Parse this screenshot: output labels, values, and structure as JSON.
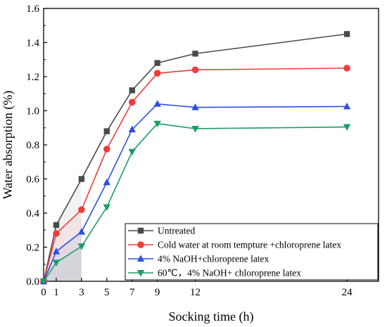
{
  "chart_data": {
    "type": "line",
    "xlabel": "Socking time (h)",
    "ylabel": "Water absorption (%)",
    "xlim": [
      0,
      26.5
    ],
    "ylim": [
      0,
      1.6
    ],
    "x_ticks": [
      0,
      1,
      3,
      5,
      7,
      9,
      12,
      24
    ],
    "y_ticks": [
      0.0,
      0.2,
      0.4,
      0.6,
      0.8,
      1.0,
      1.2,
      1.4,
      1.6
    ],
    "y_tick_labels": [
      "0.0",
      "0.2",
      "0.4",
      "0.6",
      "0.8",
      "1.0",
      "1.2",
      "1.4",
      "1.6"
    ],
    "grid": false,
    "legend_position": "bottom-right",
    "x": [
      0,
      1,
      3,
      5,
      7,
      9,
      12,
      24
    ],
    "series": [
      {
        "name": "Untreated",
        "color": "#4a4a4a",
        "marker": "square",
        "values": [
          0,
          0.33,
          0.6,
          0.88,
          1.12,
          1.28,
          1.335,
          1.45
        ]
      },
      {
        "name": "Cold water at room tempture +chloroprene latex",
        "color": "#ef3b3b",
        "marker": "circle",
        "values": [
          0,
          0.28,
          0.42,
          0.775,
          1.05,
          1.22,
          1.24,
          1.25
        ]
      },
      {
        "name": "4% NaOH+chloroprene latex",
        "color": "#2f4fe0",
        "marker": "triangle-up",
        "values": [
          0,
          0.175,
          0.29,
          0.58,
          0.89,
          1.04,
          1.02,
          1.025
        ]
      },
      {
        "name": "60℃，4% NaOH+ chloroprene latex",
        "color": "#1e9c6a",
        "marker": "triangle-down",
        "values": [
          0,
          0.11,
          0.205,
          0.435,
          0.76,
          0.925,
          0.895,
          0.905
        ]
      }
    ]
  }
}
